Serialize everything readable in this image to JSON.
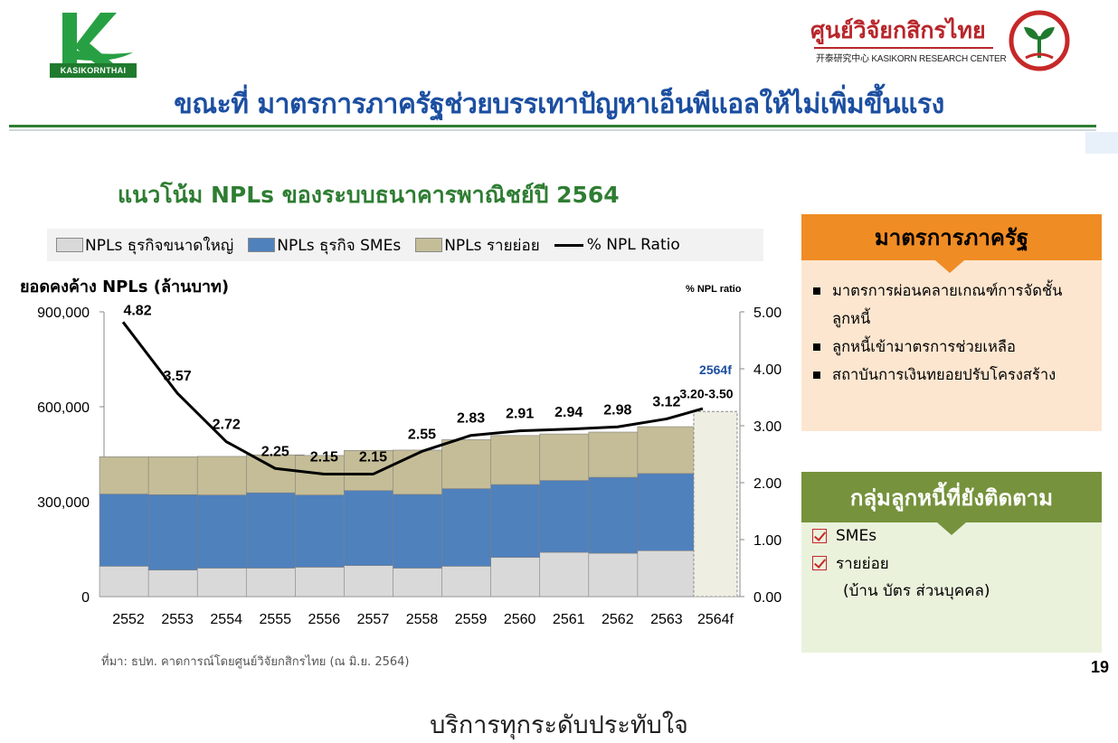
{
  "header": {
    "brand_text": "KASIKORNTHAI",
    "research_name": "ศูนย์วิจัยกสิกรไทย",
    "research_sub": "开泰研究中心 KASIKORN RESEARCH CENTER",
    "main_title": "ขณะที่ มาตรการภาครัฐช่วยบรรเทาปัญหาเอ็นพีแอลให้ไม่เพิ่มขึ้นแรง"
  },
  "chart_title": "แนวโน้ม NPLs ของระบบธนาคารพาณิชย์ปี 2564",
  "legend": [
    {
      "label": "NPLs ธุรกิจขนาดใหญ่",
      "color": "#d9d9d9",
      "kind": "box"
    },
    {
      "label": "NPLs ธุรกิจ SMEs",
      "color": "#4f81bd",
      "kind": "box"
    },
    {
      "label": "NPLs รายย่อย",
      "color": "#c4bd97",
      "kind": "box"
    },
    {
      "label": "% NPL Ratio",
      "color": "#000000",
      "kind": "line"
    }
  ],
  "y1_title": "ยอดคงค้าง NPLs (ล้านบาท)",
  "y2_title": "% NPL ratio",
  "source": "ที่มา: ธปท. คาดการณ์โดยศูนย์วิจัยกสิกรไทย (ณ มิ.ย. 2564)",
  "chart_data": {
    "type": "bar",
    "stacked": true,
    "categories": [
      "2552",
      "2553",
      "2554",
      "2555",
      "2556",
      "2557",
      "2558",
      "2559",
      "2560",
      "2561",
      "2562",
      "2563",
      "2564f"
    ],
    "series": [
      {
        "name": "NPLs ธุรกิจขนาดใหญ่",
        "color": "#d9d9d9",
        "values": [
          96000,
          84000,
          90000,
          90000,
          93000,
          98000,
          90000,
          96000,
          124000,
          140000,
          137000,
          145000,
          null
        ]
      },
      {
        "name": "NPLs ธุรกิจ SMEs",
        "color": "#4f81bd",
        "values": [
          228000,
          238000,
          231000,
          238000,
          228000,
          237000,
          233000,
          245000,
          230000,
          227000,
          240000,
          244000,
          null
        ]
      },
      {
        "name": "NPLs รายย่อย",
        "color": "#c4bd97",
        "values": [
          118000,
          120000,
          122000,
          120000,
          125000,
          127000,
          140000,
          155000,
          155000,
          147000,
          143000,
          148000,
          null
        ]
      }
    ],
    "forecast_bar": {
      "category": "2564f",
      "total": 585000,
      "color": "#eeeee2"
    },
    "line": {
      "name": "% NPL Ratio",
      "color": "#000000",
      "values": [
        4.82,
        3.57,
        2.72,
        2.25,
        2.15,
        2.15,
        2.55,
        2.83,
        2.91,
        2.94,
        2.98,
        3.12,
        3.3
      ],
      "labels": [
        "4.82",
        "3.57",
        "2.72",
        "2.25",
        "2.15",
        "2.15",
        "2.55",
        "2.83",
        "2.91",
        "2.94",
        "2.98",
        "3.12",
        ""
      ]
    },
    "forecast_labels": [
      "2564f",
      "3.20-3.50"
    ],
    "y1_ticks": [
      "0",
      "300,000",
      "600,000",
      "900,000"
    ],
    "y1lim": [
      0,
      900000
    ],
    "y2_ticks": [
      "0.00",
      "1.00",
      "2.00",
      "3.00",
      "4.00",
      "5.00"
    ],
    "y2lim": [
      0,
      5
    ],
    "grid": false
  },
  "panel_measures": {
    "title": "มาตรการภาครัฐ",
    "items": [
      {
        "line1": "มาตรการผ่อนคลายเกณฑ์การจัดชั้น",
        "line2": "ลูกหนี้"
      },
      {
        "line1": "ลูกหนี้เข้ามาตรการช่วยเหลือ",
        "line2": ""
      },
      {
        "line1": "สถาบันการเงินทยอยปรับโครงสร้าง",
        "line2": ""
      }
    ]
  },
  "panel_watch": {
    "title": "กลุ่มลูกหนี้ที่ยังติดตาม",
    "items": [
      "SMEs",
      "รายย่อย"
    ],
    "sub_note": "(บ้าน บัตร ส่วนบุคคล)"
  },
  "page_number": "19",
  "footer": "บริการทุกระดับประทับใจ",
  "colors": {
    "brand_green": "#2e7d32",
    "title_blue": "#1c4fa1",
    "orange": "#f08c24",
    "olive": "#76923c",
    "research_red": "#b8262b"
  }
}
